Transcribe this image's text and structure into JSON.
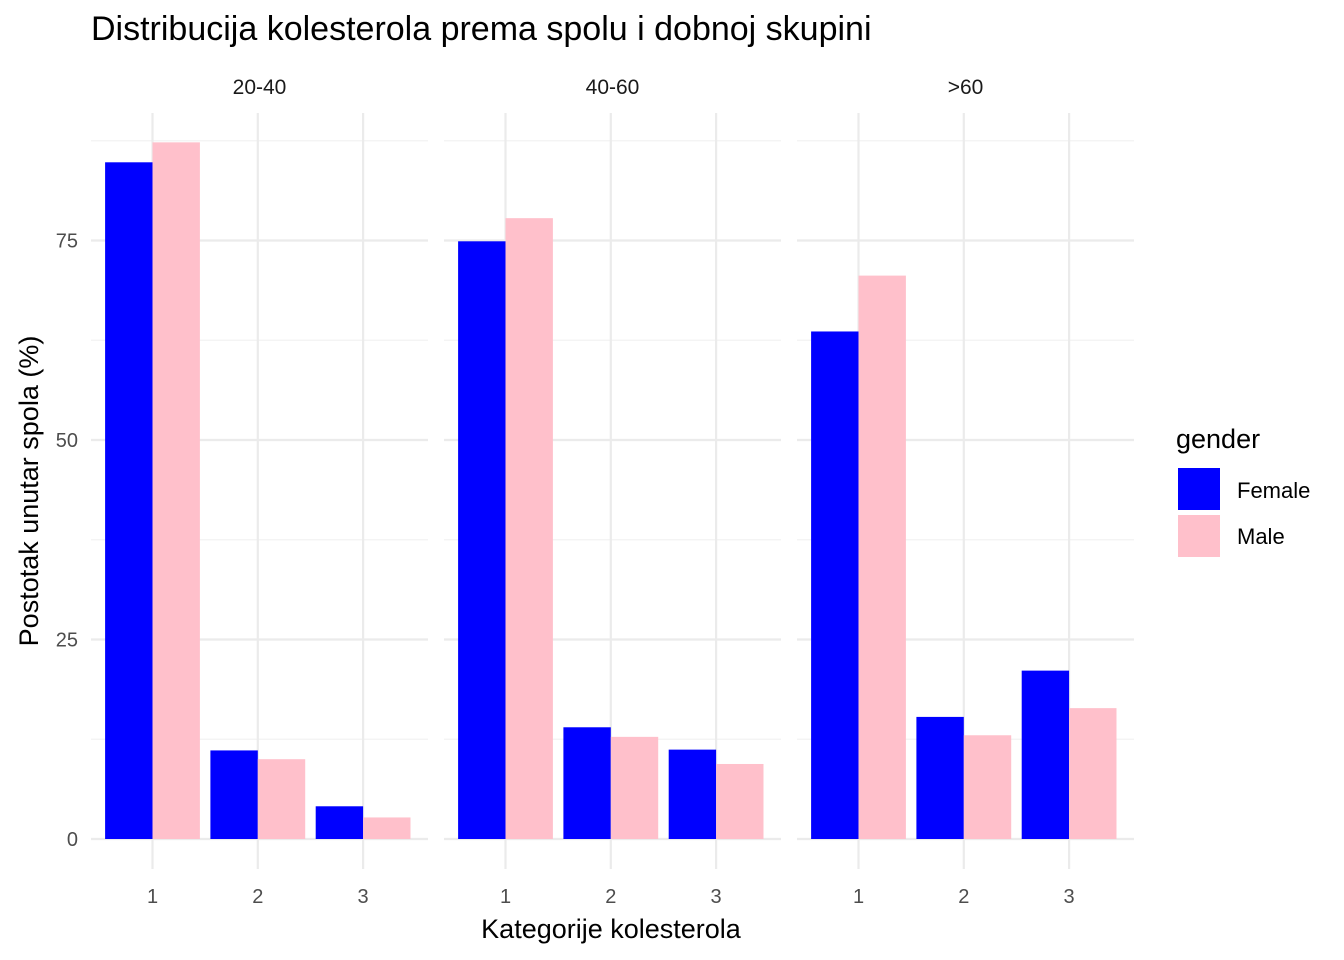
{
  "chart_data": {
    "type": "bar",
    "title": "Distribucija kolesterola prema spolu i dobnoj skupini",
    "xlabel": "Kategorije kolesterola",
    "ylabel": "Postotak unutar spola (%)",
    "ylim": [
      0,
      90
    ],
    "yticks": [
      0,
      25,
      50,
      75
    ],
    "categories": [
      "1",
      "2",
      "3"
    ],
    "legend": {
      "title": "gender",
      "position": "right",
      "items": [
        {
          "label": "Female",
          "color": "#0000ff"
        },
        {
          "label": "Male",
          "color": "#ffc0cb"
        }
      ]
    },
    "grid": true,
    "facets": [
      {
        "label": "20-40",
        "series": [
          {
            "name": "Female",
            "color": "#0000ff",
            "values": [
              84.8,
              11.1,
              4.1
            ]
          },
          {
            "name": "Male",
            "color": "#ffc0cb",
            "values": [
              87.3,
              10.0,
              2.7
            ]
          }
        ]
      },
      {
        "label": "40-60",
        "series": [
          {
            "name": "Female",
            "color": "#0000ff",
            "values": [
              74.9,
              14.0,
              11.2
            ]
          },
          {
            "name": "Male",
            "color": "#ffc0cb",
            "values": [
              77.8,
              12.8,
              9.4
            ]
          }
        ]
      },
      {
        "label": ">60",
        "series": [
          {
            "name": "Female",
            "color": "#0000ff",
            "values": [
              63.6,
              15.3,
              21.1
            ]
          },
          {
            "name": "Male",
            "color": "#ffc0cb",
            "values": [
              70.6,
              13.0,
              16.4
            ]
          }
        ]
      }
    ]
  }
}
